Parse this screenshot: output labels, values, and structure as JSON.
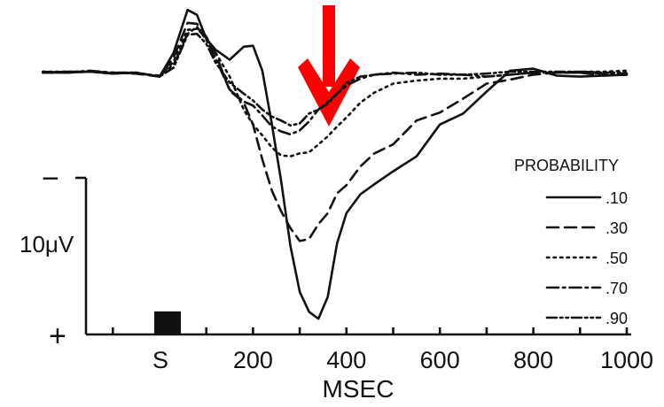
{
  "chart_data": {
    "type": "line",
    "title": "",
    "xlabel": "MSEC",
    "ylabel": "",
    "x_ticks": [
      "S",
      "200",
      "400",
      "600",
      "800",
      "1000"
    ],
    "x_tick_values": [
      0,
      200,
      400,
      600,
      800,
      1000
    ],
    "xlim": [
      -250,
      1000
    ],
    "grid": false,
    "scale_bar": {
      "label": "10μV",
      "top_sign": "−",
      "bottom_sign": "+"
    },
    "stimulus_marker": "S",
    "legend": {
      "title": "PROBABILITY",
      "placement": "right"
    },
    "annotation": {
      "type": "arrow",
      "color": "#ff0000",
      "direction": "down",
      "at_x": 380
    },
    "y_units": "μV (negative up)",
    "x": [
      -250,
      -200,
      -150,
      -100,
      -50,
      0,
      30,
      60,
      80,
      100,
      120,
      150,
      180,
      200,
      220,
      240,
      260,
      280,
      300,
      320,
      340,
      360,
      380,
      400,
      430,
      460,
      500,
      550,
      600,
      650,
      700,
      750,
      800,
      850,
      900,
      950,
      1000
    ],
    "series": [
      {
        "name": ".10",
        "dash": "solid",
        "values": [
          -1.5,
          -1.6,
          -1.6,
          -1.4,
          -1.5,
          -1.1,
          -3.5,
          -7.8,
          -7.3,
          -4.9,
          -3.8,
          -2.8,
          -4.1,
          -4.2,
          -1.7,
          3.6,
          9.3,
          15.9,
          20.5,
          22.5,
          23.2,
          21.0,
          15.6,
          12.6,
          10.7,
          9.7,
          8.4,
          6.9,
          3.7,
          2.6,
          0.4,
          -1.7,
          -1.9,
          -1.2,
          -1.1,
          -1.2,
          -1.3
        ]
      },
      {
        "name": ".30",
        "dash": "dash",
        "values": [
          -1.6,
          -1.5,
          -1.6,
          -1.5,
          -1.4,
          -1.1,
          -3.0,
          -6.5,
          -6.4,
          -5.1,
          -3.4,
          0.3,
          1.5,
          3.7,
          7.2,
          10.3,
          12.4,
          14.1,
          15.4,
          15.2,
          13.7,
          12.6,
          10.6,
          9.8,
          7.9,
          6.6,
          5.7,
          3.3,
          2.5,
          1.1,
          -0.4,
          -0.8,
          -1.3,
          -1.5,
          -1.5,
          -1.2,
          -1.3
        ]
      },
      {
        "name": ".50",
        "dash": "dot",
        "values": [
          -1.6,
          -1.6,
          -1.6,
          -1.4,
          -1.5,
          -1.1,
          -2.6,
          -5.8,
          -5.9,
          -5.0,
          -3.5,
          -1.1,
          2.2,
          3.7,
          4.8,
          6.0,
          6.8,
          6.9,
          6.6,
          6.5,
          5.7,
          4.9,
          3.9,
          3.0,
          1.5,
          0.5,
          -0.4,
          -0.7,
          -0.9,
          -0.9,
          -1.1,
          -1.3,
          -1.5,
          -1.5,
          -1.6,
          -1.6,
          -1.7
        ]
      },
      {
        "name": ".70",
        "dash": "dashdot",
        "values": [
          -1.5,
          -1.5,
          -1.7,
          -1.5,
          -1.4,
          -1.2,
          -2.3,
          -5.4,
          -6.1,
          -4.8,
          -2.9,
          0.2,
          1.4,
          1.8,
          2.8,
          3.9,
          4.4,
          4.7,
          4.3,
          3.4,
          2.2,
          1.4,
          0.6,
          -0.2,
          -0.9,
          -1.3,
          -1.5,
          -1.3,
          -1.4,
          -1.3,
          -1.1,
          -1.3,
          -1.5,
          -1.5,
          -1.5,
          -1.4,
          -1.4
        ]
      },
      {
        "name": ".90",
        "dash": "dashdotdot",
        "values": [
          -1.5,
          -1.5,
          -1.6,
          -1.5,
          -1.5,
          -1.1,
          -2.0,
          -5.3,
          -5.4,
          -4.4,
          -2.5,
          -0.5,
          0.6,
          1.3,
          2.2,
          2.9,
          3.3,
          3.8,
          3.6,
          2.6,
          2.2,
          1.6,
          0.6,
          -0.5,
          -1.1,
          -1.3,
          -1.4,
          -1.5,
          -1.3,
          -1.3,
          -1.4,
          -1.6,
          -1.6,
          -1.6,
          -1.6,
          -1.5,
          -1.5
        ]
      }
    ]
  }
}
